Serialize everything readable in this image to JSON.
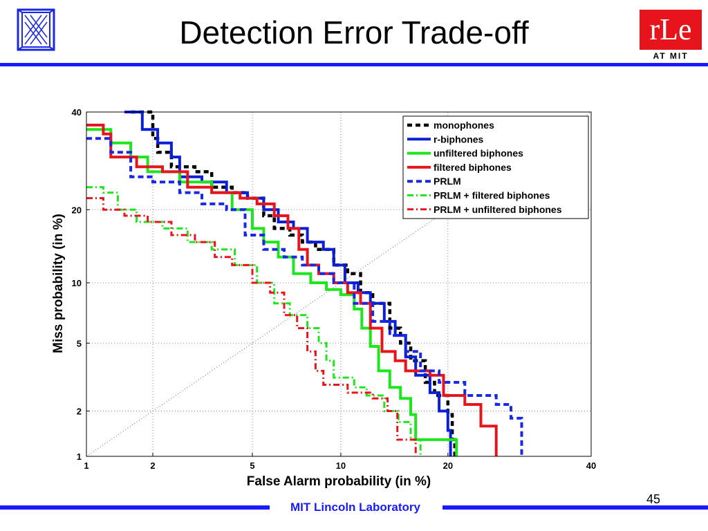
{
  "slide": {
    "title": "Detection Error Trade-off",
    "footer": "MIT Lincoln Laboratory",
    "page_number": "45",
    "accent": "#1a1aff",
    "logo_right": {
      "main": "rLe",
      "sub": "AT MIT",
      "color": "#e8141c"
    }
  },
  "chart_data": {
    "type": "line",
    "xlabel": "False Alarm probability (in %)",
    "ylabel": "Miss probability (in %)",
    "xscale": "normal-deviate",
    "yscale": "normal-deviate",
    "xlim": [
      1,
      40
    ],
    "ylim": [
      1,
      40
    ],
    "xticks": [
      1,
      2,
      5,
      10,
      20,
      40
    ],
    "yticks": [
      1,
      2,
      5,
      10,
      20,
      40
    ],
    "grid": true,
    "legend_position": "top-right",
    "diagonal": true,
    "series": [
      {
        "name": "monophones",
        "color": "#000000",
        "style": "dash-thick",
        "points": [
          [
            1.6,
            40
          ],
          [
            1.9,
            40
          ],
          [
            2.0,
            34
          ],
          [
            2.1,
            31
          ],
          [
            2.4,
            28
          ],
          [
            3.0,
            27
          ],
          [
            3.5,
            24
          ],
          [
            4.2,
            23
          ],
          [
            4.8,
            22
          ],
          [
            5.5,
            19
          ],
          [
            6.0,
            17
          ],
          [
            6.8,
            16
          ],
          [
            7.5,
            15
          ],
          [
            8.3,
            14
          ],
          [
            9.5,
            12
          ],
          [
            10.5,
            11
          ],
          [
            11.5,
            9
          ],
          [
            12.5,
            8
          ],
          [
            14.0,
            6
          ],
          [
            15.0,
            5
          ],
          [
            16.0,
            4
          ],
          [
            17.5,
            3
          ],
          [
            18.5,
            2.5
          ],
          [
            20.0,
            1.9
          ],
          [
            20.5,
            1.3
          ],
          [
            20.8,
            1.0
          ]
        ]
      },
      {
        "name": "r-biphones",
        "color": "#0a1fd6",
        "style": "solid",
        "points": [
          [
            1.5,
            40
          ],
          [
            1.8,
            36
          ],
          [
            2.1,
            33
          ],
          [
            2.4,
            30
          ],
          [
            2.6,
            26
          ],
          [
            3.2,
            25
          ],
          [
            4.0,
            23
          ],
          [
            4.8,
            22
          ],
          [
            5.5,
            20
          ],
          [
            6.2,
            18
          ],
          [
            7.0,
            17
          ],
          [
            7.8,
            15
          ],
          [
            8.8,
            14
          ],
          [
            9.5,
            12
          ],
          [
            10.3,
            10
          ],
          [
            11.3,
            9
          ],
          [
            12.3,
            8
          ],
          [
            13.5,
            6.5
          ],
          [
            14.5,
            5.5
          ],
          [
            15.5,
            4.2
          ],
          [
            16.5,
            3.3
          ],
          [
            18.0,
            2.6
          ],
          [
            19.0,
            2.0
          ],
          [
            20.0,
            1.5
          ],
          [
            20.3,
            1.0
          ]
        ]
      },
      {
        "name": "unfiltered biphones",
        "color": "#1de61d",
        "style": "solid",
        "points": [
          [
            1.0,
            36
          ],
          [
            1.3,
            33
          ],
          [
            1.6,
            30
          ],
          [
            1.9,
            27
          ],
          [
            2.6,
            25
          ],
          [
            3.5,
            23
          ],
          [
            4.2,
            20
          ],
          [
            5.0,
            17
          ],
          [
            5.5,
            15
          ],
          [
            6.2,
            13
          ],
          [
            7.0,
            11
          ],
          [
            8.0,
            10
          ],
          [
            9.0,
            9.3
          ],
          [
            10.0,
            8.8
          ],
          [
            11.0,
            7.5
          ],
          [
            11.6,
            6.0
          ],
          [
            12.3,
            4.8
          ],
          [
            13.0,
            3.5
          ],
          [
            14.0,
            2.8
          ],
          [
            15.0,
            2.4
          ],
          [
            16.0,
            1.9
          ],
          [
            16.5,
            1.3
          ],
          [
            20.0,
            1.3
          ],
          [
            21.0,
            1.0
          ]
        ]
      },
      {
        "name": "filtered biphones",
        "color": "#e8141c",
        "style": "solid",
        "points": [
          [
            1.0,
            37
          ],
          [
            1.2,
            35
          ],
          [
            1.3,
            30
          ],
          [
            1.7,
            28
          ],
          [
            2.2,
            27
          ],
          [
            2.8,
            24
          ],
          [
            3.5,
            23
          ],
          [
            4.5,
            22
          ],
          [
            5.2,
            21
          ],
          [
            6.0,
            19
          ],
          [
            6.7,
            17
          ],
          [
            7.3,
            14
          ],
          [
            7.8,
            12
          ],
          [
            8.5,
            11
          ],
          [
            9.5,
            10
          ],
          [
            10.5,
            9
          ],
          [
            11.5,
            8
          ],
          [
            12.3,
            6
          ],
          [
            13.3,
            4.5
          ],
          [
            14.5,
            4.0
          ],
          [
            15.5,
            3.5
          ],
          [
            18.0,
            3.3
          ],
          [
            19.5,
            2.5
          ],
          [
            22.0,
            2.2
          ],
          [
            24.0,
            1.6
          ],
          [
            26.0,
            1.0
          ]
        ]
      },
      {
        "name": "PRLM",
        "color": "#1a28e6",
        "style": "dash",
        "points": [
          [
            1.0,
            34
          ],
          [
            1.3,
            31
          ],
          [
            1.6,
            26
          ],
          [
            2.0,
            25
          ],
          [
            2.6,
            23
          ],
          [
            3.2,
            21
          ],
          [
            4.0,
            20
          ],
          [
            4.7,
            16
          ],
          [
            5.5,
            14
          ],
          [
            6.5,
            13
          ],
          [
            7.5,
            12
          ],
          [
            8.5,
            11
          ],
          [
            9.5,
            10
          ],
          [
            11.0,
            8
          ],
          [
            12.5,
            6.5
          ],
          [
            14.0,
            5.5
          ],
          [
            15.5,
            4.5
          ],
          [
            17.0,
            3.5
          ],
          [
            19.0,
            3.0
          ],
          [
            22.0,
            2.5
          ],
          [
            26.0,
            2.2
          ],
          [
            28.0,
            1.8
          ],
          [
            29.5,
            1.0
          ]
        ]
      },
      {
        "name": "PRLM + filtered biphones",
        "color": "#1de61d",
        "style": "dashdot",
        "points": [
          [
            1.0,
            24
          ],
          [
            1.2,
            23
          ],
          [
            1.4,
            20
          ],
          [
            1.7,
            18
          ],
          [
            2.2,
            17
          ],
          [
            2.8,
            15
          ],
          [
            3.5,
            14
          ],
          [
            4.3,
            12
          ],
          [
            5.2,
            10
          ],
          [
            6.0,
            8
          ],
          [
            6.8,
            7
          ],
          [
            7.8,
            6
          ],
          [
            8.5,
            5
          ],
          [
            9.0,
            4
          ],
          [
            9.5,
            3.2
          ],
          [
            11.0,
            2.8
          ],
          [
            12.0,
            2.5
          ],
          [
            13.5,
            2.0
          ],
          [
            14.8,
            1.7
          ],
          [
            16.0,
            1.3
          ],
          [
            17.0,
            1.0
          ]
        ]
      },
      {
        "name": "PRLM + unfiltered biphones",
        "color": "#e8141c",
        "style": "dashdot",
        "points": [
          [
            1.0,
            22
          ],
          [
            1.2,
            20
          ],
          [
            1.5,
            19
          ],
          [
            1.9,
            18
          ],
          [
            2.4,
            16
          ],
          [
            3.0,
            15
          ],
          [
            3.6,
            13
          ],
          [
            4.2,
            12
          ],
          [
            5.0,
            10
          ],
          [
            5.8,
            9
          ],
          [
            6.5,
            7
          ],
          [
            7.2,
            6
          ],
          [
            7.8,
            4.5
          ],
          [
            8.3,
            3.5
          ],
          [
            8.8,
            2.9
          ],
          [
            10.5,
            2.6
          ],
          [
            12.5,
            2.4
          ],
          [
            13.8,
            2.0
          ],
          [
            14.7,
            1.3
          ],
          [
            15.8,
            1.3
          ],
          [
            16.5,
            1.0
          ]
        ]
      }
    ]
  }
}
